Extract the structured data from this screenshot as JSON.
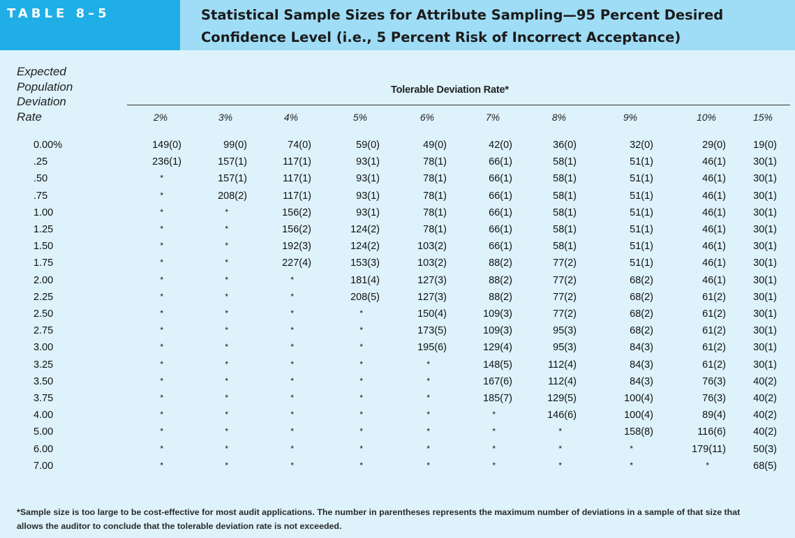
{
  "header": {
    "table_label": "TABLE 8–5",
    "title_line1": "Statistical Sample Sizes for Attribute Sampling—95 Percent Desired",
    "title_line2": "Confidence Level (i.e., 5 Percent Risk of Incorrect Acceptance)",
    "label_color": "#1faee6",
    "title_bg": "#9fdcf5",
    "page_bg": "#ddf2fb"
  },
  "row_header": {
    "lines": [
      "Expected",
      "Population",
      "Deviation",
      "Rate"
    ]
  },
  "column_group_title": "Tolerable Deviation Rate*",
  "columns": [
    "2%",
    "3%",
    "4%",
    "5%",
    "6%",
    "7%",
    "8%",
    "9%",
    "10%",
    "15%"
  ],
  "rows": [
    {
      "rate": "0.00%",
      "cells": [
        "149(0)",
        "99(0)",
        "74(0)",
        "59(0)",
        "49(0)",
        "42(0)",
        "36(0)",
        "32(0)",
        "29(0)",
        "19(0)"
      ]
    },
    {
      "rate": ".25",
      "cells": [
        "236(1)",
        "157(1)",
        "117(1)",
        "93(1)",
        "78(1)",
        "66(1)",
        "58(1)",
        "51(1)",
        "46(1)",
        "30(1)"
      ]
    },
    {
      "rate": ".50",
      "cells": [
        "*",
        "157(1)",
        "117(1)",
        "93(1)",
        "78(1)",
        "66(1)",
        "58(1)",
        "51(1)",
        "46(1)",
        "30(1)"
      ]
    },
    {
      "rate": ".75",
      "cells": [
        "*",
        "208(2)",
        "117(1)",
        "93(1)",
        "78(1)",
        "66(1)",
        "58(1)",
        "51(1)",
        "46(1)",
        "30(1)"
      ]
    },
    {
      "rate": "1.00",
      "cells": [
        "*",
        "*",
        "156(2)",
        "93(1)",
        "78(1)",
        "66(1)",
        "58(1)",
        "51(1)",
        "46(1)",
        "30(1)"
      ]
    },
    {
      "rate": "1.25",
      "cells": [
        "*",
        "*",
        "156(2)",
        "124(2)",
        "78(1)",
        "66(1)",
        "58(1)",
        "51(1)",
        "46(1)",
        "30(1)"
      ]
    },
    {
      "rate": "1.50",
      "cells": [
        "*",
        "*",
        "192(3)",
        "124(2)",
        "103(2)",
        "66(1)",
        "58(1)",
        "51(1)",
        "46(1)",
        "30(1)"
      ]
    },
    {
      "rate": "1.75",
      "cells": [
        "*",
        "*",
        "227(4)",
        "153(3)",
        "103(2)",
        "88(2)",
        "77(2)",
        "51(1)",
        "46(1)",
        "30(1)"
      ]
    },
    {
      "rate": "2.00",
      "cells": [
        "*",
        "*",
        "*",
        "181(4)",
        "127(3)",
        "88(2)",
        "77(2)",
        "68(2)",
        "46(1)",
        "30(1)"
      ]
    },
    {
      "rate": "2.25",
      "cells": [
        "*",
        "*",
        "*",
        "208(5)",
        "127(3)",
        "88(2)",
        "77(2)",
        "68(2)",
        "61(2)",
        "30(1)"
      ]
    },
    {
      "rate": "2.50",
      "cells": [
        "*",
        "*",
        "*",
        "*",
        "150(4)",
        "109(3)",
        "77(2)",
        "68(2)",
        "61(2)",
        "30(1)"
      ]
    },
    {
      "rate": "2.75",
      "cells": [
        "*",
        "*",
        "*",
        "*",
        "173(5)",
        "109(3)",
        "95(3)",
        "68(2)",
        "61(2)",
        "30(1)"
      ]
    },
    {
      "rate": "3.00",
      "cells": [
        "*",
        "*",
        "*",
        "*",
        "195(6)",
        "129(4)",
        "95(3)",
        "84(3)",
        "61(2)",
        "30(1)"
      ]
    },
    {
      "rate": "3.25",
      "cells": [
        "*",
        "*",
        "*",
        "*",
        "*",
        "148(5)",
        "112(4)",
        "84(3)",
        "61(2)",
        "30(1)"
      ]
    },
    {
      "rate": "3.50",
      "cells": [
        "*",
        "*",
        "*",
        "*",
        "*",
        "167(6)",
        "112(4)",
        "84(3)",
        "76(3)",
        "40(2)"
      ]
    },
    {
      "rate": "3.75",
      "cells": [
        "*",
        "*",
        "*",
        "*",
        "*",
        "185(7)",
        "129(5)",
        "100(4)",
        "76(3)",
        "40(2)"
      ]
    },
    {
      "rate": "4.00",
      "cells": [
        "*",
        "*",
        "*",
        "*",
        "*",
        "*",
        "146(6)",
        "100(4)",
        "89(4)",
        "40(2)"
      ]
    },
    {
      "rate": "5.00",
      "cells": [
        "*",
        "*",
        "*",
        "*",
        "*",
        "*",
        "*",
        "158(8)",
        "116(6)",
        "40(2)"
      ]
    },
    {
      "rate": "6.00",
      "cells": [
        "*",
        "*",
        "*",
        "*",
        "*",
        "*",
        "*",
        "*",
        "179(11)",
        "50(3)"
      ]
    },
    {
      "rate": "7.00",
      "cells": [
        "*",
        "*",
        "*",
        "*",
        "*",
        "*",
        "*",
        "*",
        "*",
        "68(5)"
      ]
    }
  ],
  "footnote_line1": "*Sample size is too large to be cost-effective for most audit applications. The number in parentheses represents the maximum number of deviations in a sample of that size that",
  "footnote_line2": "allows the auditor to conclude that the tolerable deviation rate is not exceeded."
}
